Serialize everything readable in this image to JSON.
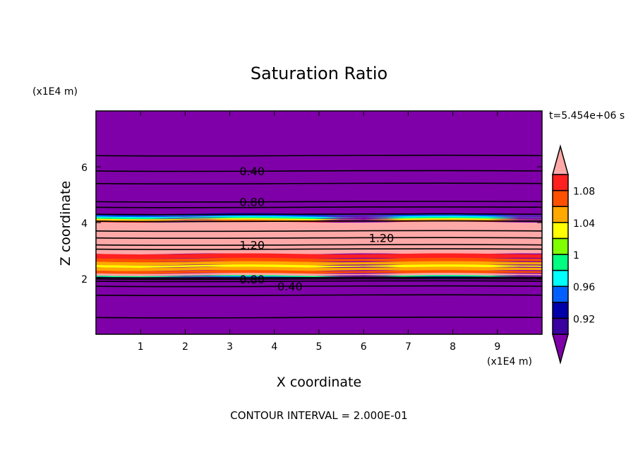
{
  "chart_data": {
    "type": "heatmap",
    "subtype": "filled-contour",
    "title": "Saturation Ratio",
    "xlabel": "X coordinate",
    "ylabel": "Z coordinate",
    "x_units": "(x1E4 m)",
    "y_units": "(x1E4 m)",
    "time_label": "t=5.454e+06 s",
    "footer": "CONTOUR INTERVAL = 2.000E-01",
    "xlim": [
      0,
      10
    ],
    "ylim": [
      0,
      8
    ],
    "x_ticks": [
      "1",
      "2",
      "3",
      "4",
      "5",
      "6",
      "7",
      "8",
      "9"
    ],
    "y_ticks": [
      "2",
      "4",
      "6"
    ],
    "colorbar": {
      "levels": [
        0.9,
        0.92,
        0.94,
        0.96,
        0.98,
        1.0,
        1.02,
        1.04,
        1.06,
        1.08,
        1.1
      ],
      "colors": [
        "#3a00a0",
        "#0000a8",
        "#0060ff",
        "#00ffff",
        "#00ff80",
        "#80ff00",
        "#ffff00",
        "#ffa800",
        "#ff5000",
        "#ff2020"
      ],
      "under_color": "#7f00a8",
      "over_color": "#ffa8a8",
      "tick_labels": [
        {
          "value": 0.92,
          "label": "0.92"
        },
        {
          "value": 0.96,
          "label": "0.96"
        },
        {
          "value": 1.0,
          "label": "1"
        },
        {
          "value": 1.04,
          "label": "1.04"
        },
        {
          "value": 1.08,
          "label": "1.08"
        }
      ]
    },
    "bands": [
      {
        "z0": 4.32,
        "z1": 4.27,
        "color": "#0000a8"
      },
      {
        "z0": 4.27,
        "z1": 4.22,
        "color": "#0060ff"
      },
      {
        "z0": 4.22,
        "z1": 4.18,
        "color": "#00ffff"
      },
      {
        "z0": 4.18,
        "z1": 4.14,
        "color": "#00ff80"
      },
      {
        "z0": 4.14,
        "z1": 4.1,
        "color": "#ffff00"
      },
      {
        "z0": 4.1,
        "z1": 4.06,
        "color": "#ffa800"
      },
      {
        "z0": 4.06,
        "z1": 4.02,
        "color": "#ff2020"
      },
      {
        "z0": 4.02,
        "z1": 2.88,
        "color": "#ffa8a8"
      },
      {
        "z0": 2.88,
        "z1": 2.72,
        "color": "#ff2020"
      },
      {
        "z0": 2.72,
        "z1": 2.6,
        "color": "#ff5000"
      },
      {
        "z0": 2.6,
        "z1": 2.48,
        "color": "#ffa800"
      },
      {
        "z0": 2.48,
        "z1": 2.4,
        "color": "#ffff00"
      },
      {
        "z0": 2.4,
        "z1": 2.28,
        "color": "#ffa800"
      },
      {
        "z0": 2.28,
        "z1": 2.18,
        "color": "#ff5000"
      },
      {
        "z0": 2.18,
        "z1": 2.1,
        "color": "#ffa8a8"
      },
      {
        "z0": 2.1,
        "z1": 2.06,
        "color": "#00ff80"
      },
      {
        "z0": 2.06,
        "z1": 2.03,
        "color": "#0060ff"
      }
    ],
    "contours": [
      {
        "z": 6.4
      },
      {
        "z": 5.85,
        "label": "0.40",
        "label_x": 3.5
      },
      {
        "z": 5.4
      },
      {
        "z": 4.75,
        "label": "0.80",
        "label_x": 3.5
      },
      {
        "z": 4.55
      },
      {
        "z": 4.3
      },
      {
        "z": 4.05
      },
      {
        "z": 3.7
      },
      {
        "z": 3.45,
        "label": "1.20",
        "label_x": 6.4
      },
      {
        "z": 3.2,
        "label": "1.20",
        "label_x": 3.5
      },
      {
        "z": 3.05
      },
      {
        "z": 2.03
      },
      {
        "z": 1.98,
        "label": "0.80",
        "label_x": 3.5
      },
      {
        "z": 1.9
      },
      {
        "z": 1.72,
        "label": "0.40",
        "label_x": 3.5
      },
      {
        "z": 1.4
      },
      {
        "z": 0.6
      }
    ]
  }
}
